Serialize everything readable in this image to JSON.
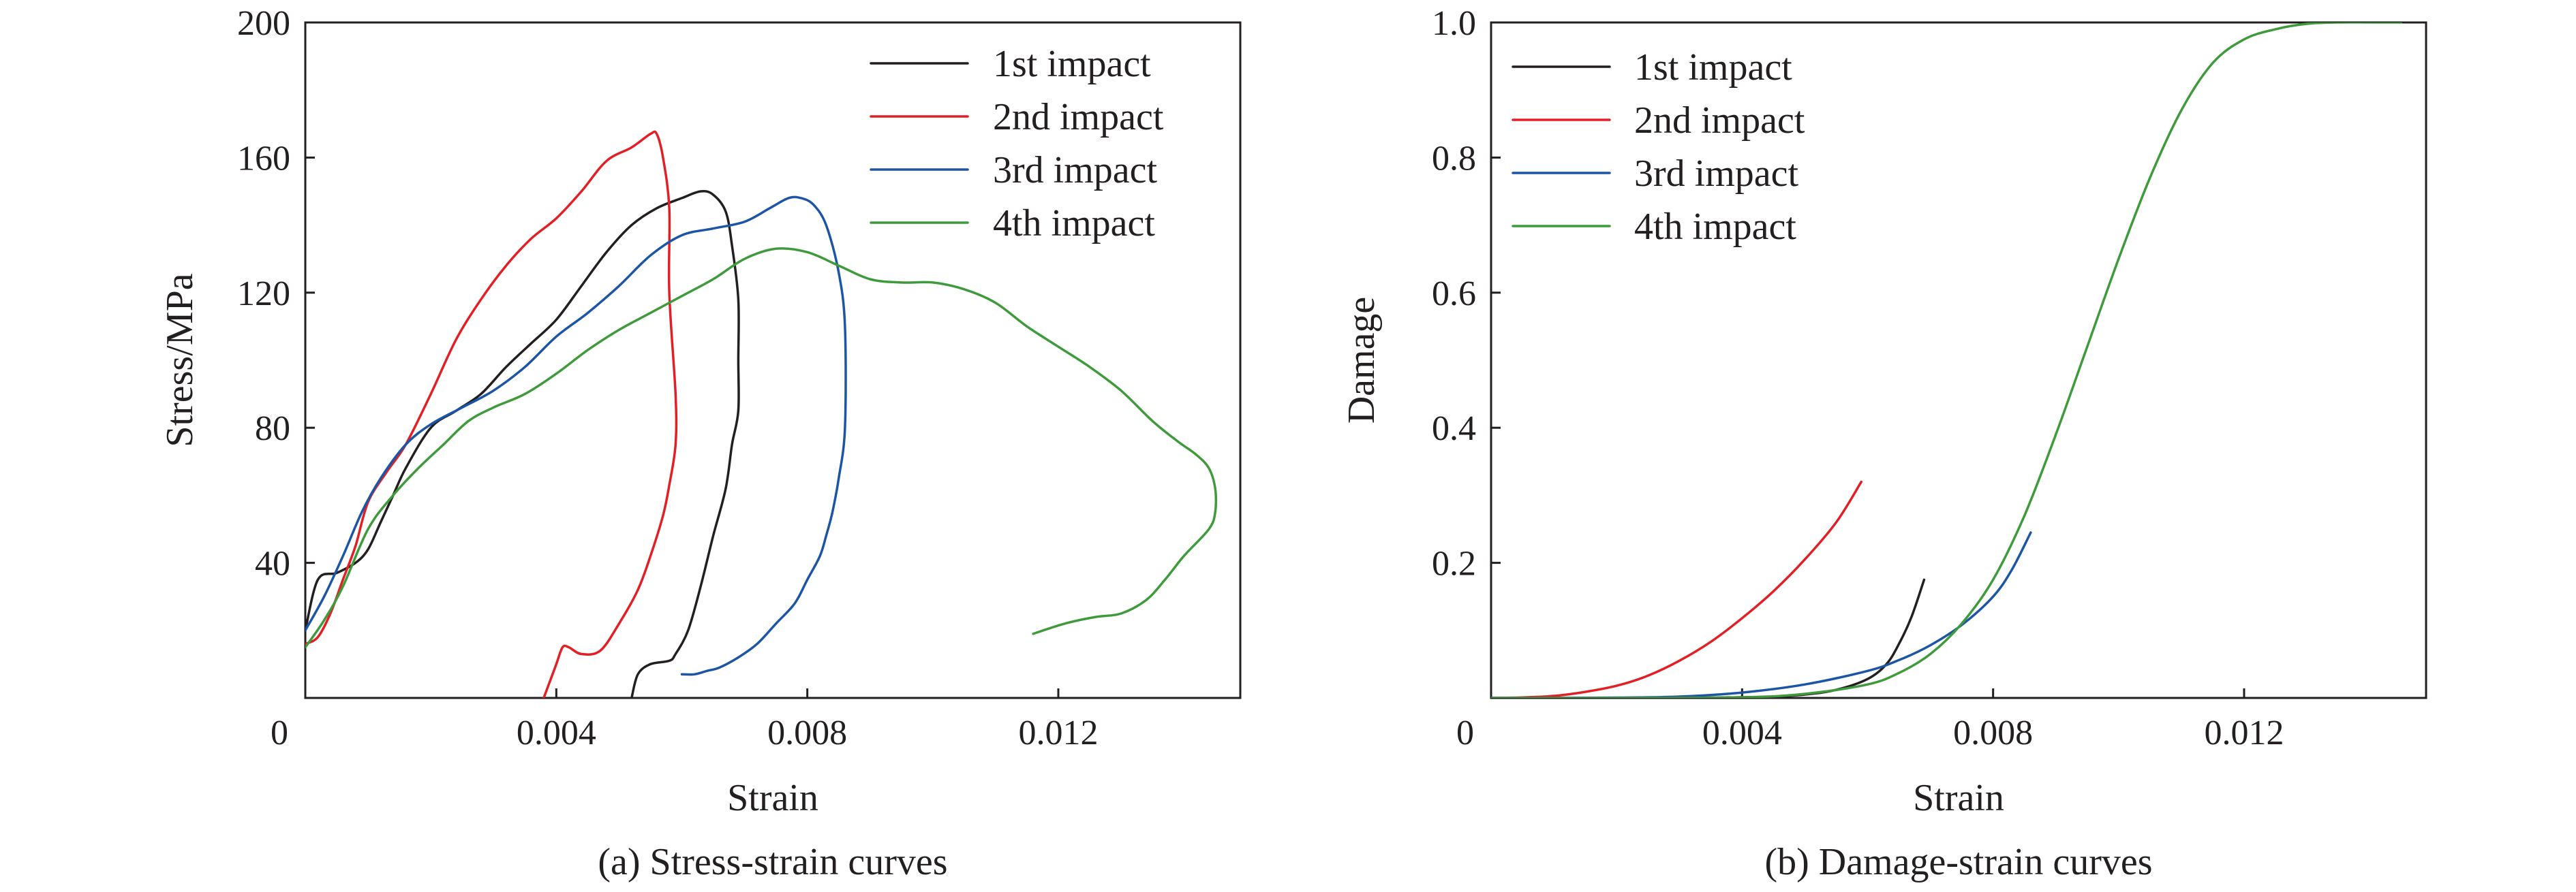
{
  "chart_data": [
    {
      "type": "line",
      "caption": "(a) Stress-strain curves",
      "xlabel": "Strain",
      "ylabel": "Stress/MPa",
      "xlim": [
        0,
        0.0149
      ],
      "ylim": [
        0,
        200
      ],
      "x_origin_label": "0",
      "xticks": [
        0.004,
        0.008,
        0.012
      ],
      "xtick_labels": [
        "0.004",
        "0.008",
        "0.012"
      ],
      "yticks": [
        40,
        80,
        120,
        160,
        200
      ],
      "ytick_labels": [
        "40",
        "80",
        "120",
        "160",
        "200"
      ],
      "grid": false,
      "legend_position": "top-right",
      "series": [
        {
          "name": "1st impact",
          "color": "#231f20",
          "x": [
            0.0,
            0.0002,
            0.0005,
            0.0008,
            0.001,
            0.0012,
            0.0014,
            0.0016,
            0.002,
            0.0024,
            0.0028,
            0.0032,
            0.0036,
            0.004,
            0.0044,
            0.0048,
            0.0052,
            0.0056,
            0.006,
            0.0063,
            0.0065,
            0.0067,
            0.0068,
            0.0069,
            0.0069,
            0.0069,
            0.0068,
            0.0067,
            0.0065,
            0.0063,
            0.0061,
            0.0059,
            0.0058,
            0.0055,
            0.0053,
            0.0052
          ],
          "y": [
            20,
            35,
            37,
            40,
            44,
            52,
            60,
            68,
            80,
            85,
            90,
            98,
            105,
            112,
            122,
            132,
            140,
            145,
            148,
            150,
            149,
            144,
            134,
            118,
            100,
            85,
            75,
            62,
            48,
            33,
            20,
            13,
            11,
            10,
            7,
            0
          ]
        },
        {
          "name": "2nd impact",
          "color": "#e31f26",
          "x": [
            0.0,
            0.0002,
            0.0004,
            0.0006,
            0.0008,
            0.001,
            0.0013,
            0.0016,
            0.002,
            0.0024,
            0.0028,
            0.0032,
            0.0036,
            0.004,
            0.0044,
            0.0048,
            0.0052,
            0.0055,
            0.0056,
            0.0057,
            0.0058,
            0.0058,
            0.0059,
            0.0059,
            0.0058,
            0.0057,
            0.0055,
            0.0053,
            0.005,
            0.0047,
            0.0044,
            0.0042,
            0.0041,
            0.004,
            0.0039,
            0.0038
          ],
          "y": [
            16,
            18,
            25,
            35,
            45,
            58,
            67,
            75,
            90,
            106,
            118,
            128,
            136,
            142,
            150,
            159,
            163,
            167,
            167,
            160,
            145,
            120,
            90,
            75,
            63,
            54,
            42,
            32,
            22,
            14,
            13,
            15,
            15,
            10,
            5,
            0
          ]
        },
        {
          "name": "3rd impact",
          "color": "#1c55a5",
          "x": [
            0.0,
            0.0003,
            0.0006,
            0.0009,
            0.0012,
            0.0016,
            0.002,
            0.0025,
            0.003,
            0.0035,
            0.004,
            0.0045,
            0.005,
            0.0055,
            0.006,
            0.0065,
            0.007,
            0.0074,
            0.0077,
            0.0079,
            0.0081,
            0.0083,
            0.0085,
            0.0086,
            0.0086,
            0.0085,
            0.0084,
            0.0083,
            0.0082,
            0.008,
            0.0078,
            0.0075,
            0.0072,
            0.0069,
            0.0066,
            0.0064,
            0.0062,
            0.006
          ],
          "y": [
            20,
            30,
            42,
            55,
            65,
            75,
            81,
            86,
            91,
            98,
            107,
            114,
            122,
            131,
            137,
            139,
            141,
            145,
            148,
            148,
            146,
            140,
            126,
            110,
            80,
            65,
            55,
            48,
            42,
            35,
            28,
            22,
            16,
            12,
            9,
            8,
            7,
            7
          ]
        },
        {
          "name": "4th impact",
          "color": "#3f9a3c",
          "x": [
            0.0,
            0.0003,
            0.0006,
            0.001,
            0.0014,
            0.0018,
            0.0022,
            0.0026,
            0.003,
            0.0035,
            0.004,
            0.0045,
            0.005,
            0.0055,
            0.006,
            0.0065,
            0.007,
            0.0075,
            0.008,
            0.0085,
            0.009,
            0.0095,
            0.01,
            0.0105,
            0.011,
            0.0115,
            0.012,
            0.0125,
            0.013,
            0.0135,
            0.0139,
            0.0142,
            0.0144,
            0.0145,
            0.0145,
            0.0144,
            0.014,
            0.0137,
            0.0134,
            0.013,
            0.0126,
            0.0121,
            0.0116
          ],
          "y": [
            15,
            23,
            33,
            50,
            60,
            68,
            75,
            82,
            86,
            90,
            96,
            103,
            109,
            114,
            119,
            124,
            130,
            133,
            132,
            128,
            124,
            123,
            123,
            121,
            117,
            110,
            104,
            98,
            91,
            82,
            76,
            72,
            68,
            62,
            55,
            50,
            42,
            35,
            29,
            25,
            24,
            22,
            19
          ]
        }
      ]
    },
    {
      "type": "line",
      "caption": "(b) Damage-strain curves",
      "xlabel": "Strain",
      "ylabel": "Damage",
      "xlim": [
        0,
        0.0149
      ],
      "ylim": [
        0,
        1.0
      ],
      "x_origin_label": "0",
      "xticks": [
        0.004,
        0.008,
        0.012
      ],
      "xtick_labels": [
        "0.004",
        "0.008",
        "0.012"
      ],
      "yticks": [
        0.2,
        0.4,
        0.6,
        0.8,
        1.0
      ],
      "ytick_labels": [
        "0.2",
        "0.4",
        "0.6",
        "0.8",
        "1.0"
      ],
      "grid": false,
      "legend_position": "top-left",
      "series": [
        {
          "name": "1st impact",
          "color": "#231f20",
          "x": [
            0.0,
            0.001,
            0.002,
            0.003,
            0.004,
            0.0045,
            0.005,
            0.0055,
            0.006,
            0.0063,
            0.0065,
            0.0067,
            0.0069
          ],
          "y": [
            0.0,
            0.0,
            0.0,
            0.0,
            0.001,
            0.002,
            0.005,
            0.012,
            0.028,
            0.05,
            0.08,
            0.12,
            0.175
          ]
        },
        {
          "name": "2nd impact",
          "color": "#e31f26",
          "x": [
            0.0,
            0.0005,
            0.001,
            0.0015,
            0.002,
            0.0025,
            0.003,
            0.0035,
            0.004,
            0.0045,
            0.005,
            0.0055,
            0.0059
          ],
          "y": [
            0.0,
            0.0008,
            0.003,
            0.009,
            0.018,
            0.033,
            0.055,
            0.083,
            0.118,
            0.158,
            0.205,
            0.26,
            0.32
          ]
        },
        {
          "name": "3rd impact",
          "color": "#1c55a5",
          "x": [
            0.0,
            0.001,
            0.002,
            0.003,
            0.004,
            0.005,
            0.006,
            0.0065,
            0.007,
            0.0075,
            0.008,
            0.0083,
            0.0086
          ],
          "y": [
            0.0,
            0.0,
            0.0005,
            0.002,
            0.008,
            0.02,
            0.04,
            0.056,
            0.078,
            0.108,
            0.15,
            0.19,
            0.245
          ]
        },
        {
          "name": "4th impact",
          "color": "#3f9a3c",
          "x": [
            0.0,
            0.002,
            0.004,
            0.005,
            0.006,
            0.0065,
            0.007,
            0.0075,
            0.008,
            0.0085,
            0.009,
            0.0095,
            0.01,
            0.0105,
            0.011,
            0.0115,
            0.012,
            0.0125,
            0.013,
            0.0135,
            0.014,
            0.0145
          ],
          "y": [
            0.0,
            0.0,
            0.001,
            0.006,
            0.02,
            0.037,
            0.065,
            0.11,
            0.175,
            0.27,
            0.39,
            0.52,
            0.65,
            0.77,
            0.87,
            0.94,
            0.975,
            0.99,
            0.998,
            1.0,
            1.0,
            1.0
          ]
        }
      ]
    }
  ]
}
